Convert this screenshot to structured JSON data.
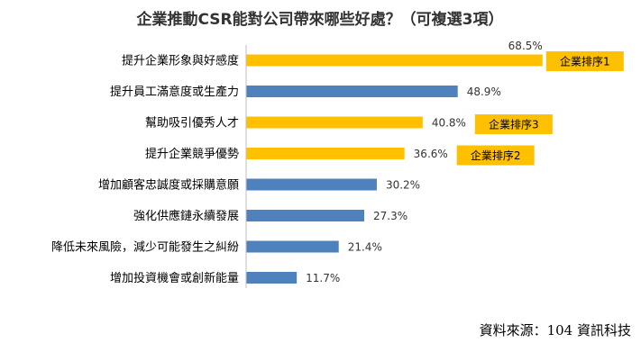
{
  "chart_data": {
    "type": "bar",
    "orientation": "horizontal",
    "title": "企業推動CSR能對公司帶來哪些好處？（可複選3項）",
    "categories": [
      "提升企業形象與好感度",
      "提升員工滿意度或生產力",
      "幫助吸引優秀人才",
      "提升企業競爭優勢",
      "增加顧客忠誠度或採購意願",
      "強化供應鏈永續發展",
      "降低未來風險，減少可能發生之糾紛",
      "增加投資機會或創新能量"
    ],
    "values": [
      68.5,
      48.9,
      40.8,
      36.6,
      30.2,
      27.3,
      21.4,
      11.7
    ],
    "value_labels": [
      "68.5%",
      "48.9%",
      "40.8%",
      "36.6%",
      "30.2%",
      "27.3%",
      "21.4%",
      "11.7%"
    ],
    "xlim": [
      0,
      100
    ],
    "grid": false,
    "highlights": [
      {
        "category_index": 0,
        "badge": "企業排序1"
      },
      {
        "category_index": 2,
        "badge": "企業排序3"
      },
      {
        "category_index": 3,
        "badge": "企業排序2"
      }
    ],
    "colors": {
      "default_bar": "#4F81BD",
      "highlight_bar": "#FFC000",
      "badge": "#FFC000"
    }
  },
  "source": "資料來源：104 資訊科技"
}
